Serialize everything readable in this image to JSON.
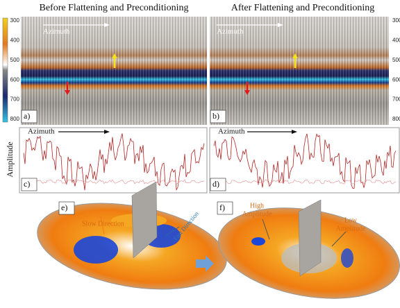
{
  "header": {
    "left_title": "Before Flattening and Preconditioning",
    "right_title": "After Flattening and Preconditioning"
  },
  "seismic": {
    "depth_ticks": [
      300,
      400,
      500,
      600,
      700,
      800
    ],
    "annotation": "Azimuth"
  },
  "amplitude": {
    "axis_label": "Amplitude",
    "annotation": "Azimuth"
  },
  "panel_labels": [
    "a)",
    "b)",
    "c)",
    "d)",
    "e)",
    "f)"
  ],
  "maps": {
    "slow": "Slow Direction",
    "fast": "Fast Direction",
    "high": [
      "High",
      "Amplitude"
    ],
    "low": [
      "Low",
      "Amplitude"
    ]
  }
}
